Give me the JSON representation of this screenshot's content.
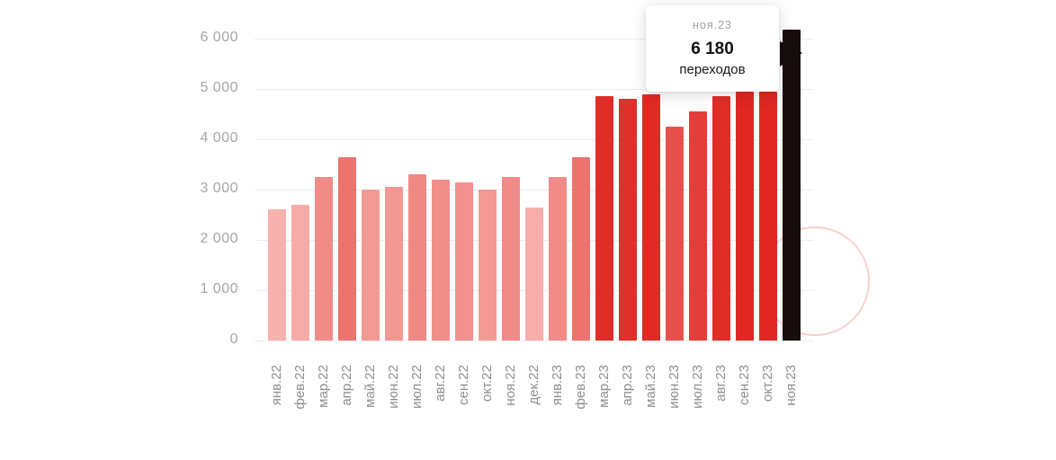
{
  "accent_color": "#e0312d",
  "highlight_color": "#170d0d",
  "chart_data": {
    "type": "bar",
    "title": "",
    "xlabel": "",
    "ylabel": "",
    "ylim": [
      0,
      6000
    ],
    "grid": true,
    "yticks": [
      0,
      1000,
      2000,
      3000,
      4000,
      5000,
      6000
    ],
    "ytick_labels": [
      "0",
      "1 000",
      "2 000",
      "3 000",
      "4 000",
      "5 000",
      "6 000"
    ],
    "categories": [
      "янв.22",
      "фев.22",
      "мар.22",
      "апр.22",
      "май.22",
      "июн.22",
      "июл.22",
      "авг.22",
      "сен.22",
      "окт.22",
      "ноя.22",
      "дек.22",
      "янв.23",
      "фев.23",
      "мар.23",
      "апр.23",
      "май.23",
      "июн.23",
      "июл.23",
      "авг.23",
      "сен.23",
      "окт.23",
      "ноя.23"
    ],
    "values": [
      2600,
      2700,
      3250,
      3650,
      3000,
      3050,
      3300,
      3200,
      3150,
      3000,
      3250,
      2650,
      3250,
      3650,
      4850,
      4800,
      4900,
      4250,
      4550,
      4850,
      4950,
      4950,
      6180
    ],
    "colors": [
      "#f7b1ae",
      "#f6aba8",
      "#f18b87",
      "#ed736f",
      "#f39a96",
      "#f39793",
      "#f08884",
      "#f18e8a",
      "#f2918d",
      "#f39a96",
      "#f18b87",
      "#f7aeab",
      "#f18b87",
      "#ed736f",
      "#e02d28",
      "#e1302b",
      "#e02a25",
      "#e7504c",
      "#e43e3a",
      "#e02d28",
      "#e02722",
      "#e02722",
      "#170d0d"
    ],
    "highlight_index": 22,
    "legend": []
  },
  "tooltip": {
    "label": "ноя.23",
    "value": "6 180",
    "unit": "переходов"
  }
}
